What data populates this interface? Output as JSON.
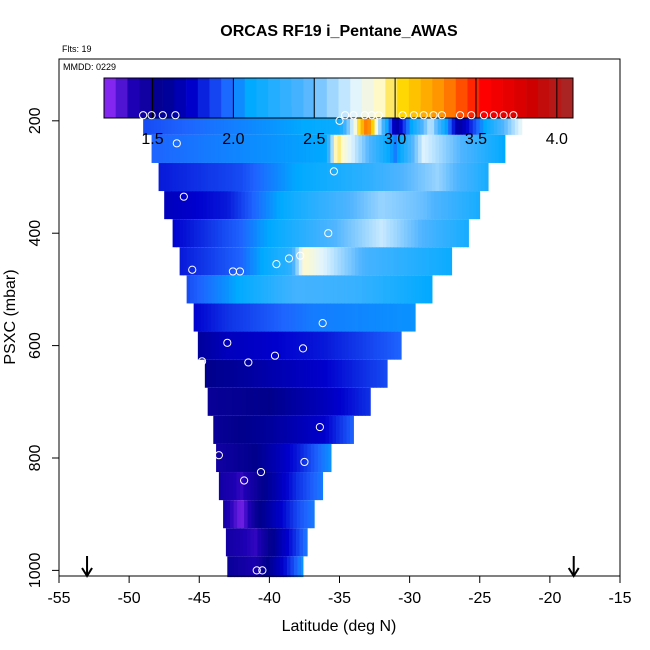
{
  "chart_data": {
    "type": "heatmap",
    "title": "ORCAS RF19 i_Pentane_AWAS",
    "flts_label": "Flts: 19",
    "mmdd_label": "MMDD: 0229",
    "xlabel": "Latitude (deg N)",
    "ylabel": "PSXC (mbar)",
    "xlim": [
      -55,
      -15
    ],
    "ylim": [
      1010,
      90
    ],
    "x_ticks": [
      -55,
      -50,
      -45,
      -40,
      -35,
      -30,
      -25,
      -20,
      -15
    ],
    "y_ticks": [
      200,
      400,
      600,
      800,
      1000
    ],
    "colorbar": {
      "range": [
        1.2,
        4.1
      ],
      "ticks": [
        1.5,
        2.0,
        2.5,
        3.0,
        3.5,
        4.0
      ],
      "stops": [
        {
          "v": 1.2,
          "c": "#9b30ff"
        },
        {
          "v": 1.38,
          "c": "#1e00b4"
        },
        {
          "v": 1.55,
          "c": "#00008b"
        },
        {
          "v": 1.75,
          "c": "#0000cd"
        },
        {
          "v": 1.95,
          "c": "#1e64ff"
        },
        {
          "v": 2.1,
          "c": "#00aaff"
        },
        {
          "v": 2.45,
          "c": "#50b4ff"
        },
        {
          "v": 2.75,
          "c": "#e0f4ff"
        },
        {
          "v": 2.9,
          "c": "#fffacd"
        },
        {
          "v": 3.05,
          "c": "#ffd700"
        },
        {
          "v": 3.3,
          "c": "#ff8c00"
        },
        {
          "v": 3.55,
          "c": "#ff0000"
        },
        {
          "v": 3.85,
          "c": "#cd0000"
        },
        {
          "v": 4.1,
          "c": "#a52a2a"
        }
      ]
    },
    "flight_markers_lat": [
      -53,
      -18.3
    ],
    "curtain": {
      "levels": [
        200,
        250,
        300,
        350,
        400,
        450,
        500,
        550,
        600,
        650,
        700,
        750,
        800,
        850,
        900,
        950,
        1000
      ],
      "lat_min": [
        -49.0,
        -48.4,
        -47.9,
        -47.5,
        -46.9,
        -46.4,
        -45.9,
        -45.4,
        -45.1,
        -44.6,
        -44.4,
        -44.0,
        -43.8,
        -43.6,
        -43.3,
        -43.1,
        -43.0
      ],
      "lat_max": [
        -22.0,
        -23.2,
        -24.4,
        -25.0,
        -25.8,
        -27.0,
        -28.4,
        -29.6,
        -30.6,
        -31.6,
        -32.8,
        -34.0,
        -35.6,
        -36.2,
        -36.8,
        -37.3,
        -37.6
      ],
      "anchors": [
        [
          [
            -49,
            1.9
          ],
          [
            -40,
            2.05
          ],
          [
            -35,
            2.15
          ],
          [
            -33,
            3.4
          ],
          [
            -31,
            1.6
          ],
          [
            -28.5,
            2.7
          ],
          [
            -26.5,
            1.6
          ],
          [
            -22,
            2.8
          ]
        ],
        [
          [
            -48.4,
            1.95
          ],
          [
            -40,
            2.05
          ],
          [
            -36,
            2.1
          ],
          [
            -35.2,
            3.0
          ],
          [
            -31,
            2.0
          ],
          [
            -29,
            2.75
          ],
          [
            -23.2,
            2.1
          ]
        ],
        [
          [
            -47.9,
            1.8
          ],
          [
            -42,
            1.9
          ],
          [
            -38,
            2.1
          ],
          [
            -33,
            2.3
          ],
          [
            -28,
            2.6
          ],
          [
            -24.4,
            2.2
          ]
        ],
        [
          [
            -47.5,
            1.7
          ],
          [
            -43,
            1.8
          ],
          [
            -38,
            2.2
          ],
          [
            -32,
            2.6
          ],
          [
            -29,
            2.5
          ],
          [
            -25,
            2.2
          ]
        ],
        [
          [
            -46.9,
            1.75
          ],
          [
            -42,
            1.95
          ],
          [
            -36,
            2.4
          ],
          [
            -32,
            2.7
          ],
          [
            -28,
            2.35
          ],
          [
            -25.8,
            2.2
          ]
        ],
        [
          [
            -46.4,
            1.8
          ],
          [
            -42,
            1.95
          ],
          [
            -38.5,
            2.3
          ],
          [
            -37.5,
            2.9
          ],
          [
            -33,
            2.4
          ],
          [
            -27,
            2.15
          ]
        ],
        [
          [
            -45.9,
            1.9
          ],
          [
            -43,
            2.05
          ],
          [
            -38,
            2.4
          ],
          [
            -34,
            2.35
          ],
          [
            -28.4,
            2.1
          ]
        ],
        [
          [
            -45.4,
            1.75
          ],
          [
            -43,
            1.85
          ],
          [
            -37,
            2.0
          ],
          [
            -29.6,
            2.05
          ]
        ],
        [
          [
            -45.1,
            1.6
          ],
          [
            -43,
            1.7
          ],
          [
            -36,
            1.8
          ],
          [
            -30.6,
            1.95
          ]
        ],
        [
          [
            -44.6,
            1.55
          ],
          [
            -42,
            1.6
          ],
          [
            -36,
            1.75
          ],
          [
            -31.6,
            1.9
          ]
        ],
        [
          [
            -44.4,
            1.5
          ],
          [
            -40,
            1.55
          ],
          [
            -36,
            1.7
          ],
          [
            -32.8,
            1.85
          ]
        ],
        [
          [
            -44.0,
            1.5
          ],
          [
            -40,
            1.6
          ],
          [
            -36,
            1.75
          ],
          [
            -34.0,
            1.95
          ]
        ],
        [
          [
            -43.8,
            1.45
          ],
          [
            -41,
            1.55
          ],
          [
            -38,
            1.8
          ],
          [
            -35.6,
            2.05
          ]
        ],
        [
          [
            -43.6,
            1.45
          ],
          [
            -42,
            1.35
          ],
          [
            -40,
            1.6
          ],
          [
            -38,
            1.85
          ],
          [
            -36.2,
            2.0
          ]
        ],
        [
          [
            -43.3,
            1.45
          ],
          [
            -42,
            1.25
          ],
          [
            -41,
            1.5
          ],
          [
            -38,
            1.9
          ],
          [
            -36.8,
            2.0
          ]
        ],
        [
          [
            -43.1,
            1.45
          ],
          [
            -41,
            1.35
          ],
          [
            -39,
            1.7
          ],
          [
            -37.3,
            2.0
          ]
        ],
        [
          [
            -43.0,
            1.5
          ],
          [
            -41,
            1.4
          ],
          [
            -39,
            1.75
          ],
          [
            -37.6,
            2.05
          ]
        ]
      ]
    },
    "samples": [
      {
        "lat": -49.0,
        "p": 190
      },
      {
        "lat": -48.4,
        "p": 190
      },
      {
        "lat": -47.6,
        "p": 190
      },
      {
        "lat": -46.7,
        "p": 190
      },
      {
        "lat": -34.6,
        "p": 190
      },
      {
        "lat": -34.0,
        "p": 190
      },
      {
        "lat": -33.2,
        "p": 190
      },
      {
        "lat": -32.7,
        "p": 190
      },
      {
        "lat": -32.2,
        "p": 190
      },
      {
        "lat": -30.5,
        "p": 190
      },
      {
        "lat": -29.7,
        "p": 190
      },
      {
        "lat": -29.0,
        "p": 190
      },
      {
        "lat": -28.3,
        "p": 190
      },
      {
        "lat": -27.7,
        "p": 190
      },
      {
        "lat": -26.4,
        "p": 190
      },
      {
        "lat": -25.6,
        "p": 190
      },
      {
        "lat": -24.7,
        "p": 190
      },
      {
        "lat": -24.0,
        "p": 190
      },
      {
        "lat": -23.3,
        "p": 190
      },
      {
        "lat": -22.6,
        "p": 190
      },
      {
        "lat": -35.0,
        "p": 200
      },
      {
        "lat": -46.6,
        "p": 240
      },
      {
        "lat": -35.4,
        "p": 290
      },
      {
        "lat": -46.1,
        "p": 335
      },
      {
        "lat": -35.8,
        "p": 400
      },
      {
        "lat": -37.8,
        "p": 440
      },
      {
        "lat": -38.6,
        "p": 445
      },
      {
        "lat": -39.5,
        "p": 455
      },
      {
        "lat": -45.5,
        "p": 465
      },
      {
        "lat": -42.6,
        "p": 468
      },
      {
        "lat": -42.1,
        "p": 468
      },
      {
        "lat": -36.2,
        "p": 560
      },
      {
        "lat": -43.0,
        "p": 595
      },
      {
        "lat": -37.6,
        "p": 605
      },
      {
        "lat": -39.6,
        "p": 618
      },
      {
        "lat": -44.8,
        "p": 628
      },
      {
        "lat": -41.5,
        "p": 630
      },
      {
        "lat": -36.4,
        "p": 745
      },
      {
        "lat": -43.6,
        "p": 795
      },
      {
        "lat": -37.5,
        "p": 807
      },
      {
        "lat": -40.6,
        "p": 825
      },
      {
        "lat": -44.7,
        "p": 835
      },
      {
        "lat": -41.8,
        "p": 840
      },
      {
        "lat": -44.1,
        "p": 1000
      },
      {
        "lat": -43.8,
        "p": 1000
      },
      {
        "lat": -40.9,
        "p": 1000
      },
      {
        "lat": -40.5,
        "p": 1000
      },
      {
        "lat": -37.1,
        "p": 1000
      }
    ]
  }
}
